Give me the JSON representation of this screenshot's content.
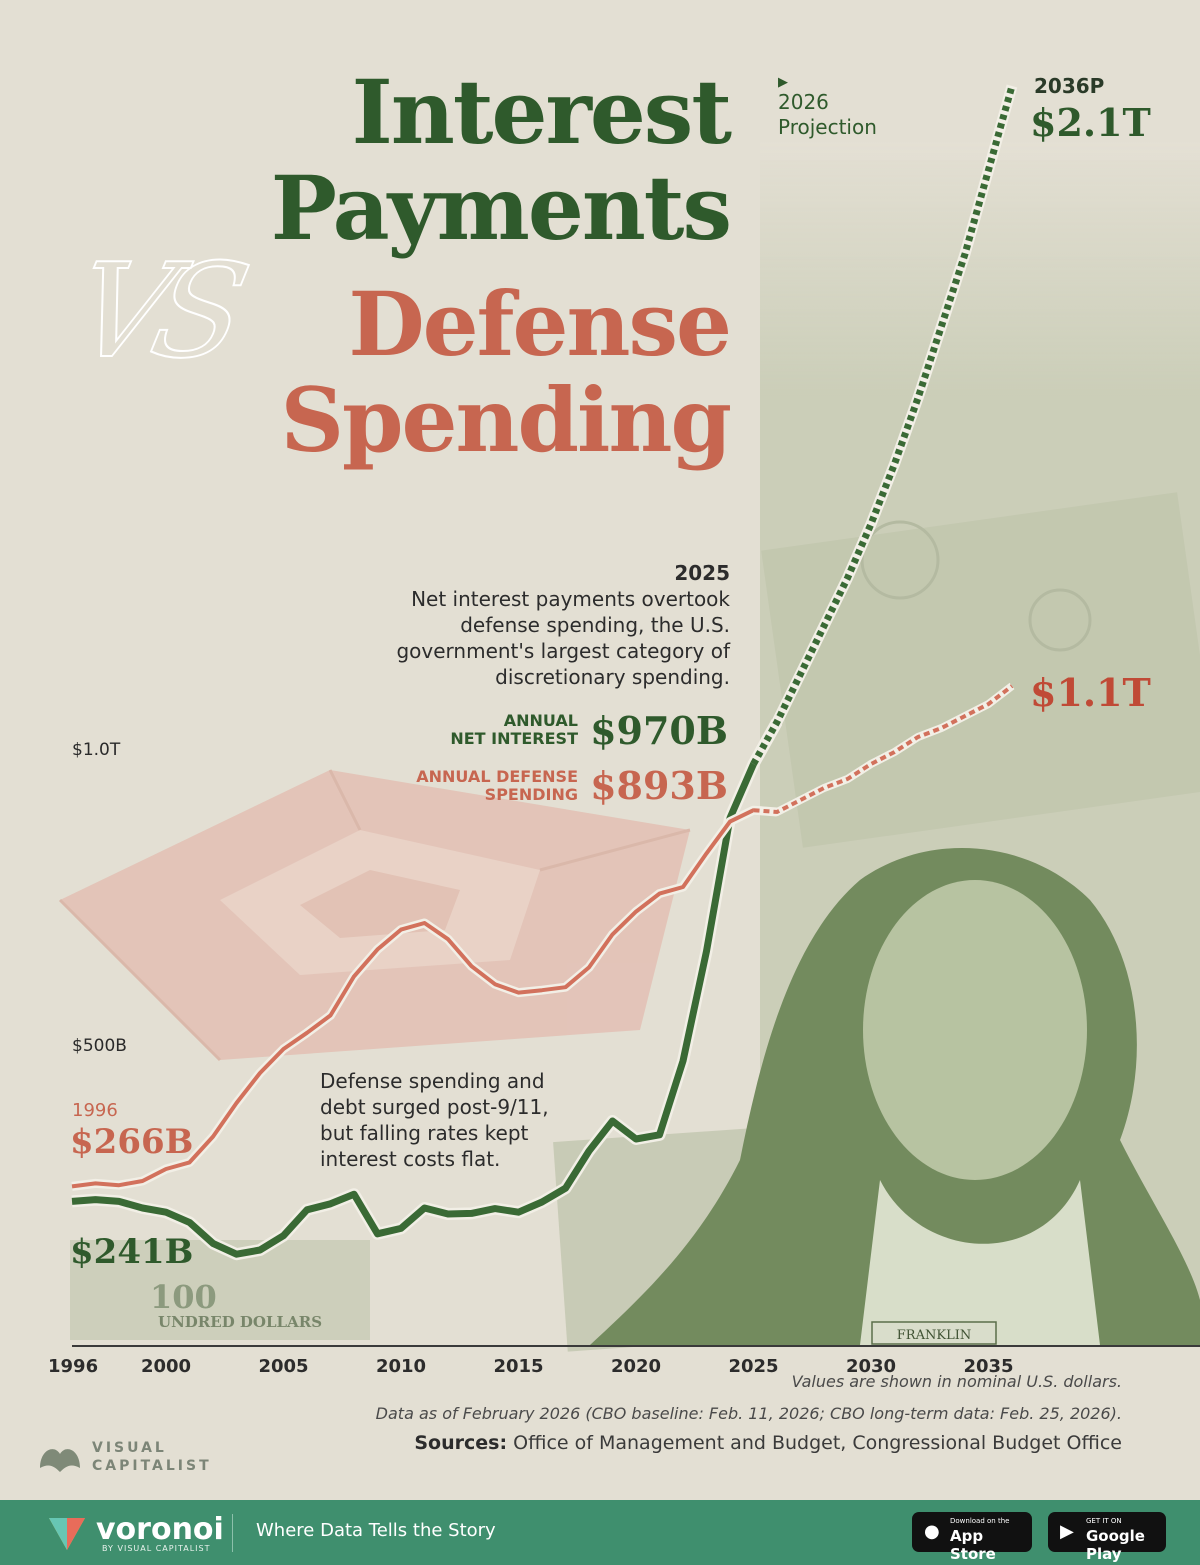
{
  "title": {
    "line1": "Interest",
    "line2": "Payments",
    "vs": "VS",
    "line3": "Defense",
    "line4": "Spending"
  },
  "projection_marker": {
    "symbol": "▶",
    "label_year": "2026",
    "label_text": "Projection"
  },
  "end_labels": {
    "year": "2036P",
    "interest_value": "$2.1T",
    "defense_value": "$1.1T"
  },
  "annotation_2025": {
    "year": "2025",
    "text_lines": [
      "Net interest payments overtook",
      "defense spending, the U.S.",
      "government's largest category of",
      "discretionary spending."
    ],
    "interest_label_1": "ANNUAL",
    "interest_label_2": "NET INTEREST",
    "interest_value": "$970B",
    "defense_label_1": "ANNUAL DEFENSE",
    "defense_label_2": "SPENDING",
    "defense_value": "$893B"
  },
  "annotation_911": {
    "text_lines": [
      "Defense spending and",
      "debt surged post-9/11,",
      "but falling rates kept",
      "interest costs flat."
    ]
  },
  "start_labels": {
    "year": "1996",
    "defense_value": "$266B",
    "interest_value": "$241B"
  },
  "image_labels": {
    "franklin": "FRANKLIN",
    "bill": "UNDRED DOLLARS",
    "bill_number": "100"
  },
  "notes": {
    "line1": "Values are shown in nominal U.S. dollars.",
    "line2": "Data as of February 2026 (CBO baseline: Feb. 11, 2026; CBO long-term data: Feb. 25, 2026).",
    "sources_label": "Sources:",
    "sources_text": "Office of Management and Budget, Congressional Budget Office"
  },
  "logo": {
    "line1": "VISUAL",
    "line2": "CAPITALIST"
  },
  "footer": {
    "brand": "voronoi",
    "brand_sub": "BY VISUAL CAPITALIST",
    "tagline": "Where Data Tells the Story",
    "appstore_small": "Download on the",
    "appstore_big": "App Store",
    "googleplay_small": "GET IT ON",
    "googleplay_big": "Google Play"
  },
  "colors": {
    "interest": "#3a6a35",
    "defense": "#d2715c",
    "background": "#e3dfd3",
    "footer": "#3f8f6e"
  },
  "chart_data": {
    "type": "line",
    "title": "Interest Payments VS Defense Spending",
    "xlabel": "",
    "ylabel": "",
    "x_ticks": [
      1996,
      2000,
      2005,
      2010,
      2015,
      2020,
      2025,
      2030,
      2035
    ],
    "y_ticks": [
      {
        "value": 500,
        "label": "$500B"
      },
      {
        "value": 1000,
        "label": "$1.0T"
      }
    ],
    "xlim": [
      1996,
      2040
    ],
    "ylim": [
      0,
      2100
    ],
    "units": "billions of nominal U.S. dollars",
    "projection_start": 2026,
    "series": [
      {
        "name": "ANNUAL NET INTEREST",
        "color": "#3a6a35",
        "x": [
          1996,
          1997,
          1998,
          1999,
          2000,
          2001,
          2002,
          2003,
          2004,
          2005,
          2006,
          2007,
          2008,
          2009,
          2010,
          2011,
          2012,
          2013,
          2014,
          2015,
          2016,
          2017,
          2018,
          2019,
          2020,
          2021,
          2022,
          2023,
          2024,
          2025,
          2026,
          2027,
          2028,
          2029,
          2030,
          2031,
          2032,
          2033,
          2034,
          2035,
          2036
        ],
        "y": [
          241,
          244,
          241,
          230,
          223,
          206,
          171,
          153,
          160,
          184,
          227,
          237,
          253,
          187,
          196,
          230,
          220,
          221,
          229,
          223,
          240,
          263,
          325,
          375,
          345,
          352,
          475,
          658,
          880,
          970,
          1040,
          1120,
          1200,
          1280,
          1370,
          1470,
          1580,
          1700,
          1820,
          1960,
          2100
        ]
      },
      {
        "name": "ANNUAL DEFENSE SPENDING",
        "color": "#d2715c",
        "x": [
          1996,
          1997,
          1998,
          1999,
          2000,
          2001,
          2002,
          2003,
          2004,
          2005,
          2006,
          2007,
          2008,
          2009,
          2010,
          2011,
          2012,
          2013,
          2014,
          2015,
          2016,
          2017,
          2018,
          2019,
          2020,
          2021,
          2022,
          2023,
          2024,
          2025,
          2026,
          2027,
          2028,
          2029,
          2030,
          2031,
          2032,
          2033,
          2034,
          2035,
          2036
        ],
        "y": [
          266,
          271,
          268,
          275,
          295,
          306,
          349,
          405,
          455,
          495,
          522,
          551,
          616,
          661,
          694,
          705,
          678,
          633,
          603,
          589,
          593,
          598,
          631,
          686,
          724,
          754,
          765,
          821,
          874,
          893,
          890,
          910,
          930,
          945,
          970,
          990,
          1015,
          1030,
          1050,
          1070,
          1100
        ]
      }
    ]
  }
}
